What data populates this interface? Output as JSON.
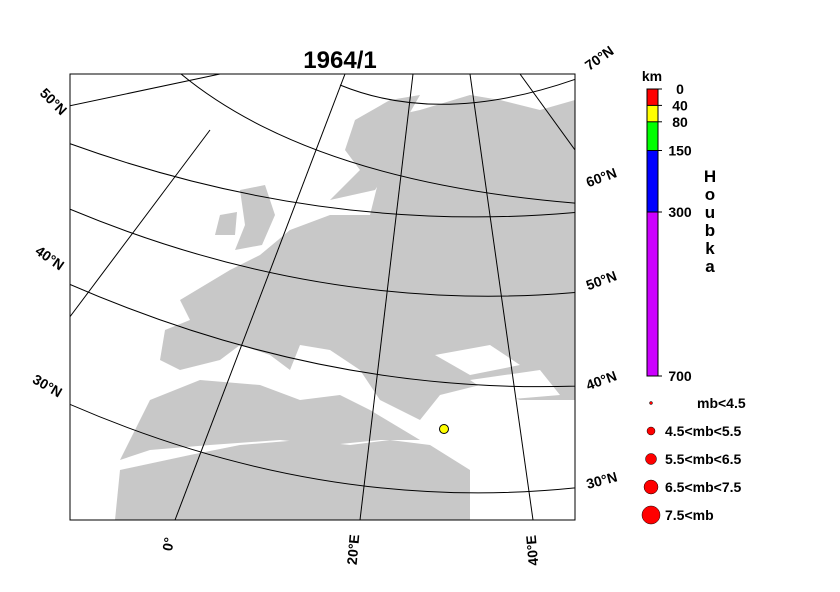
{
  "title": "1964/1",
  "map": {
    "lat_labels_left": [
      "50°N",
      "40°N",
      "30°N"
    ],
    "lat_labels_right": [
      "70°N",
      "60°N",
      "50°N",
      "40°N",
      "30°N"
    ],
    "lon_labels": [
      "0°",
      "20°E",
      "40°E"
    ]
  },
  "depth_legend": {
    "unit": "km",
    "title": "Houbka",
    "ylim": [
      0,
      700
    ],
    "ticks": [
      0,
      40,
      80,
      150,
      300,
      700
    ],
    "colors": [
      "#ff0000",
      "#ffff00",
      "#00ff00",
      "#0000ff",
      "#cc00ff"
    ]
  },
  "magnitude_legend": [
    "mb<4.5",
    "4.5<mb<5.5",
    "5.5<mb<6.5",
    "6.5<mb<7.5",
    "7.5<mb"
  ]
}
